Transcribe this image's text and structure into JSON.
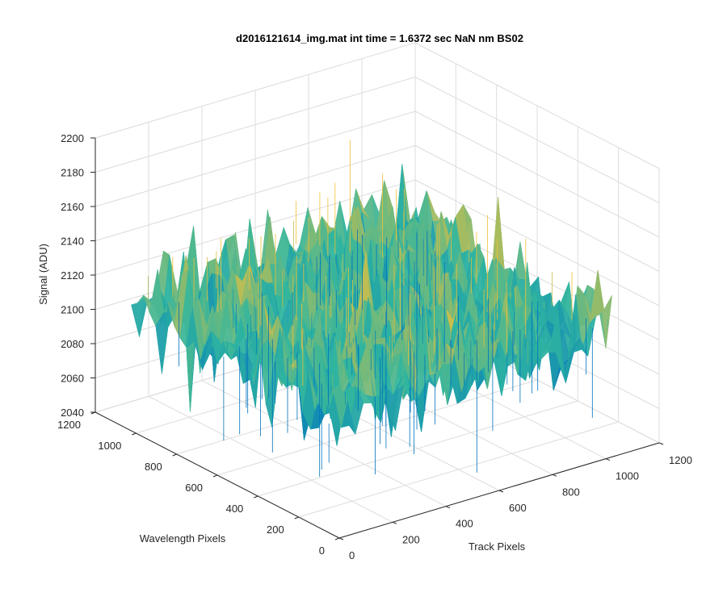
{
  "chart_data": {
    "type": "surface",
    "title": "d2016121614_img.mat int time = 1.6372 sec  NaN nm BS02",
    "xlabel": "Track Pixels",
    "ylabel": "Wavelength Pixels",
    "zlabel": "Signal (ADU)",
    "xlim": [
      0,
      1200
    ],
    "ylim": [
      0,
      1200
    ],
    "zlim": [
      2040,
      2200
    ],
    "xticks": [
      "0",
      "200",
      "400",
      "600",
      "800",
      "1000",
      "1200"
    ],
    "yticks": [
      "0",
      "200",
      "400",
      "600",
      "800",
      "1000",
      "1200"
    ],
    "zticks": [
      "2040",
      "2060",
      "2080",
      "2100",
      "2120",
      "2140",
      "2160",
      "2180",
      "2200"
    ],
    "grid": true,
    "colormap": "parula",
    "data_extent": {
      "track_pixels": [
        0,
        1023
      ],
      "wavelength_pixels": [
        0,
        1023
      ]
    },
    "signal_mean": 2115,
    "signal_noise_range": [
      2045,
      2195
    ],
    "colors": {
      "low": "#0072bd",
      "mid": "#2fb5a0",
      "high": "#f2c037"
    }
  }
}
